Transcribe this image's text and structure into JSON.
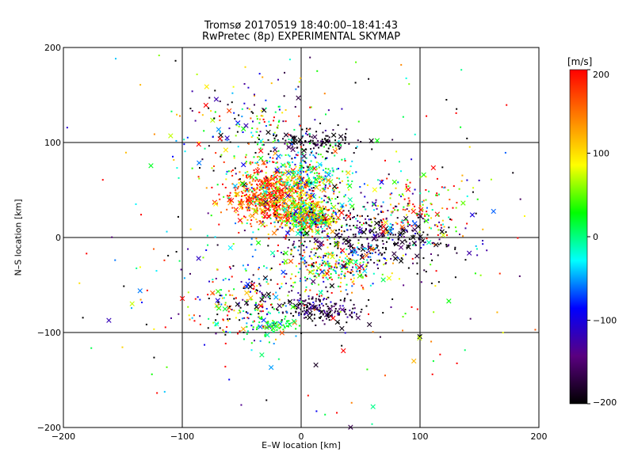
{
  "chart_data": {
    "type": "scatter",
    "title": "Tromsø 20170519 18:40:00–18:41:43",
    "subtitle": "RwPretec (8p) EXPERIMENTAL SKYMAP",
    "xlabel": "E–W location [km]",
    "ylabel": "N–S location [km]",
    "xlim": [
      -200,
      200
    ],
    "ylim": [
      -200,
      200
    ],
    "xticks": [
      -200,
      -100,
      0,
      100,
      200
    ],
    "yticks": [
      -200,
      -100,
      0,
      100,
      200
    ],
    "grid": true,
    "colorbar": {
      "label": "[m/s]",
      "range": [
        -200,
        200
      ],
      "ticks": [
        200,
        100,
        0,
        -100,
        -200
      ],
      "colors": [
        "#000000",
        "#5a0080",
        "#0000ff",
        "#00ffff",
        "#00ff00",
        "#ffff00",
        "#ff8000",
        "#ff0000"
      ]
    },
    "point_clouds": [
      {
        "cx": -25,
        "cy": 45,
        "sx": 18,
        "sy": 14,
        "n": 700,
        "vel_mean": 150,
        "vel_sd": 60
      },
      {
        "cx": 5,
        "cy": 22,
        "sx": 12,
        "sy": 8,
        "n": 500,
        "vel_mean": 70,
        "vel_sd": 90
      },
      {
        "cx": 5,
        "cy": 60,
        "sx": 22,
        "sy": 18,
        "n": 300,
        "vel_mean": 0,
        "vel_sd": 70
      },
      {
        "cx": 10,
        "cy": 100,
        "sx": 20,
        "sy": 6,
        "n": 120,
        "vel_mean": -190,
        "vel_sd": 20
      },
      {
        "cx": 60,
        "cy": 0,
        "sx": 35,
        "sy": 18,
        "n": 380,
        "vel_mean": -180,
        "vel_sd": 45
      },
      {
        "cx": 95,
        "cy": 30,
        "sx": 25,
        "sy": 18,
        "n": 160,
        "vel_mean": 90,
        "vel_sd": 120
      },
      {
        "cx": 30,
        "cy": -30,
        "sx": 20,
        "sy": 12,
        "n": 240,
        "vel_mean": 60,
        "vel_sd": 100
      },
      {
        "cx": 15,
        "cy": -75,
        "sx": 18,
        "sy": 8,
        "n": 170,
        "vel_mean": -180,
        "vel_sd": 40
      },
      {
        "cx": -45,
        "cy": -70,
        "sx": 25,
        "sy": 20,
        "n": 230,
        "vel_mean": 0,
        "vel_sd": 150
      },
      {
        "cx": -25,
        "cy": -92,
        "sx": 10,
        "sy": 5,
        "n": 60,
        "vel_mean": 20,
        "vel_sd": 20
      },
      {
        "cx": -40,
        "cy": 110,
        "sx": 30,
        "sy": 30,
        "n": 200,
        "vel_mean": 0,
        "vel_sd": 160
      },
      {
        "cx": 0,
        "cy": 0,
        "sx": 90,
        "sy": 90,
        "n": 450,
        "vel_mean": 0,
        "vel_sd": 170
      }
    ]
  }
}
